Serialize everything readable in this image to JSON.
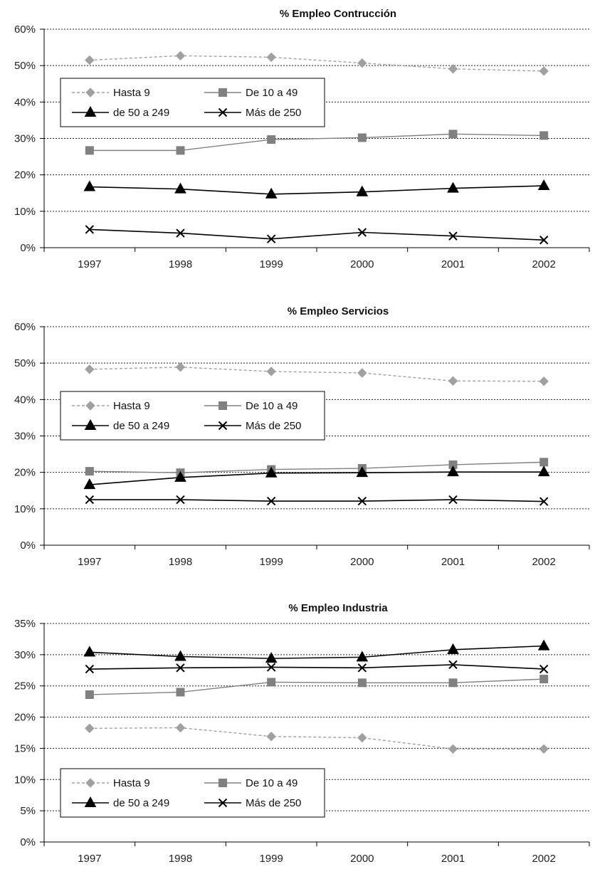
{
  "chart_data": [
    {
      "type": "line",
      "title": "% Empleo Contrucción",
      "categories": [
        "1997",
        "1998",
        "1999",
        "2000",
        "2001",
        "2002"
      ],
      "y_ticks": [
        "0%",
        "10%",
        "20%",
        "30%",
        "40%",
        "50%",
        "60%"
      ],
      "ylim": [
        0,
        60
      ],
      "y_unit": "%",
      "grid": "horizontal dotted",
      "legend_position": "upper-left",
      "series": [
        {
          "name": "Hasta 9",
          "values": [
            51.5,
            52.7,
            52.3,
            50.7,
            49.1,
            48.5
          ],
          "color": "#a0a0a0",
          "dash": true,
          "marker": "diamond"
        },
        {
          "name": "De 10 a 49",
          "values": [
            26.7,
            26.7,
            29.7,
            30.2,
            31.2,
            30.8
          ],
          "color": "#808080",
          "dash": false,
          "marker": "square"
        },
        {
          "name": "de 50 a 249",
          "values": [
            16.7,
            16.1,
            14.7,
            15.3,
            16.3,
            17.0
          ],
          "color": "#000000",
          "dash": false,
          "marker": "triangle"
        },
        {
          "name": "Más de 250",
          "values": [
            5.0,
            4.0,
            2.4,
            4.2,
            3.2,
            2.1
          ],
          "color": "#000000",
          "dash": false,
          "marker": "x"
        }
      ]
    },
    {
      "type": "line",
      "title": "% Empleo Servicios",
      "categories": [
        "1997",
        "1998",
        "1999",
        "2000",
        "2001",
        "2002"
      ],
      "y_ticks": [
        "0%",
        "10%",
        "20%",
        "30%",
        "40%",
        "50%",
        "60%"
      ],
      "ylim": [
        0,
        60
      ],
      "y_unit": "%",
      "grid": "horizontal dotted",
      "legend_position": "center-left",
      "series": [
        {
          "name": "Hasta 9",
          "values": [
            48.3,
            48.9,
            47.7,
            47.3,
            45.1,
            45.0
          ],
          "color": "#a0a0a0",
          "dash": true,
          "marker": "diamond"
        },
        {
          "name": "De 10 a 49",
          "values": [
            20.3,
            19.9,
            20.8,
            21.1,
            22.1,
            22.8
          ],
          "color": "#808080",
          "dash": false,
          "marker": "square"
        },
        {
          "name": "de 50 a 249",
          "values": [
            16.6,
            18.6,
            19.8,
            19.9,
            20.1,
            20.1
          ],
          "color": "#000000",
          "dash": false,
          "marker": "triangle"
        },
        {
          "name": "Más de 250",
          "values": [
            12.5,
            12.5,
            12.1,
            12.1,
            12.5,
            12.0
          ],
          "color": "#000000",
          "dash": false,
          "marker": "x"
        }
      ]
    },
    {
      "type": "line",
      "title": "% Empleo Industria",
      "categories": [
        "1997",
        "1998",
        "1999",
        "2000",
        "2001",
        "2002"
      ],
      "y_ticks": [
        "0%",
        "5%",
        "10%",
        "15%",
        "20%",
        "25%",
        "30%",
        "35%"
      ],
      "ylim": [
        0,
        35
      ],
      "y_unit": "%",
      "grid": "horizontal dotted",
      "legend_position": "lower-left",
      "series": [
        {
          "name": "Hasta 9",
          "values": [
            18.2,
            18.3,
            16.9,
            16.7,
            14.9,
            14.9
          ],
          "color": "#a0a0a0",
          "dash": true,
          "marker": "diamond"
        },
        {
          "name": "De 10 a 49",
          "values": [
            23.6,
            24.0,
            25.6,
            25.5,
            25.5,
            26.1
          ],
          "color": "#808080",
          "dash": false,
          "marker": "square"
        },
        {
          "name": "de 50 a 249",
          "values": [
            30.4,
            29.7,
            29.4,
            29.6,
            30.8,
            31.4
          ],
          "color": "#000000",
          "dash": false,
          "marker": "triangle"
        },
        {
          "name": "Más de 250",
          "values": [
            27.7,
            27.9,
            28.0,
            27.9,
            28.4,
            27.7
          ],
          "color": "#000000",
          "dash": false,
          "marker": "x"
        }
      ]
    }
  ]
}
